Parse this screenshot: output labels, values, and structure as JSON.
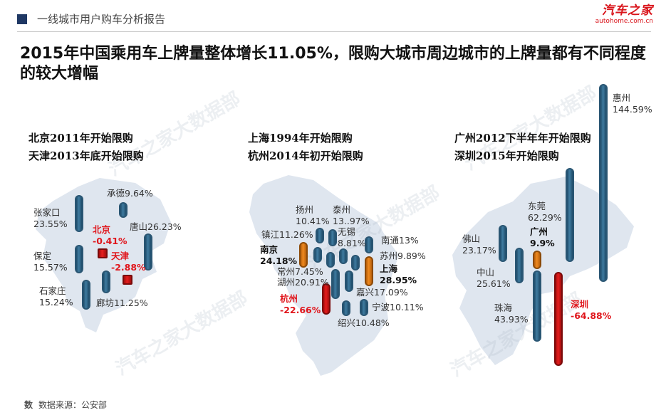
{
  "header": {
    "breadcrumb": "一线城市用户购车分析报告",
    "logo_text": "汽车之家",
    "logo_url": "autohome.com.cn"
  },
  "headline": "2015年中国乘用车上牌量整体增长11.05%，限购大城市周边城市的上牌量都有不同程度的较大增幅",
  "watermark": "汽车之家大数据部",
  "colors": {
    "bar_blue": "#2f6a8f",
    "bar_orange": "#f08a1f",
    "bar_red": "#e51d1d",
    "accent_red": "#e0161c"
  },
  "sections": [
    {
      "title_1": "北京2011年开始限购",
      "title_2": "天津2013年底开始限购",
      "cities": [
        {
          "name": "张家口",
          "value": "23.55%",
          "pct": 23.55
        },
        {
          "name": "承德",
          "value": "9.64%",
          "pct": 9.64
        },
        {
          "name": "唐山",
          "value": "26.23%",
          "pct": 26.23
        },
        {
          "name": "北京",
          "value": "-0.41%",
          "pct": -0.41
        },
        {
          "name": "天津",
          "value": "-2.88%",
          "pct": -2.88
        },
        {
          "name": "保定",
          "value": "15.57%",
          "pct": 15.57
        },
        {
          "name": "石家庄",
          "value": "15.24%",
          "pct": 15.24
        },
        {
          "name": "廊坊",
          "value": "11.25%",
          "pct": 11.25
        }
      ]
    },
    {
      "title_1": "上海1994年开始限购",
      "title_2": "杭州2014年初开始限购",
      "cities": [
        {
          "name": "扬州",
          "value": "10.41%",
          "pct": 10.41
        },
        {
          "name": "泰州",
          "value": "13..97%",
          "pct": 13.97
        },
        {
          "name": "镇江",
          "value": "11.26%",
          "pct": 11.26
        },
        {
          "name": "无锡",
          "value": "8.81%",
          "pct": 8.81
        },
        {
          "name": "南通",
          "value": "13%",
          "pct": 13
        },
        {
          "name": "南京",
          "value": "24.18%",
          "pct": 24.18
        },
        {
          "name": "苏州",
          "value": "9.89%",
          "pct": 9.89
        },
        {
          "name": "常州",
          "value": "7.45%",
          "pct": 7.45
        },
        {
          "name": "上海",
          "value": "28.95%",
          "pct": 28.95
        },
        {
          "name": "湖州",
          "value": "20.91%",
          "pct": 20.91
        },
        {
          "name": "嘉兴",
          "value": "17.09%",
          "pct": 17.09
        },
        {
          "name": "杭州",
          "value": "-22.66%",
          "pct": -22.66
        },
        {
          "name": "宁波",
          "value": "10.11%",
          "pct": 10.11
        },
        {
          "name": "绍兴",
          "value": "10.48%",
          "pct": 10.48
        }
      ]
    },
    {
      "title_1": "广州2012下半年年开始限购",
      "title_2": "深圳2015年开始限购",
      "cities": [
        {
          "name": "惠州",
          "value": "144.59%",
          "pct": 144.59
        },
        {
          "name": "东莞",
          "value": "62.29%",
          "pct": 62.29
        },
        {
          "name": "佛山",
          "value": "23.17%",
          "pct": 23.17
        },
        {
          "name": "广州",
          "value": "9.9%",
          "pct": 9.9
        },
        {
          "name": "中山",
          "value": "25.61%",
          "pct": 25.61
        },
        {
          "name": "珠海",
          "value": "43.93%",
          "pct": 43.93
        },
        {
          "name": "深圳",
          "value": "-64.88%",
          "pct": -64.88
        }
      ]
    }
  ],
  "footer": {
    "icon_text": "数",
    "source": "数据来源：公安部"
  }
}
